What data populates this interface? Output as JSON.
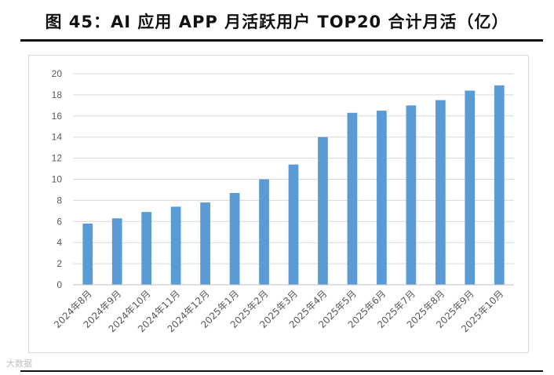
{
  "figure": {
    "title": "图 45：AI 应用 APP 月活跃用户 TOP20 合计月活（亿）",
    "watermark": "大数据"
  },
  "chart_data": {
    "type": "bar",
    "title": "",
    "xlabel": "",
    "ylabel": "",
    "categories": [
      "2024年8月",
      "2024年9月",
      "2024年10月",
      "2024年11月",
      "2024年12月",
      "2025年1月",
      "2025年2月",
      "2025年3月",
      "2025年4月",
      "2025年5月",
      "2025年6月",
      "2025年7月",
      "2025年8月",
      "2025年9月",
      "2025年10月"
    ],
    "values": [
      5.8,
      6.3,
      6.9,
      7.4,
      7.8,
      8.7,
      10.0,
      11.4,
      14.0,
      16.3,
      16.5,
      17.0,
      17.5,
      18.4,
      18.9
    ],
    "ylim": [
      0,
      20
    ],
    "yticks": [
      0,
      2,
      4,
      6,
      8,
      10,
      12,
      14,
      16,
      18,
      20
    ],
    "grid": true,
    "legend": "none",
    "colors": {
      "bar": "#5b9bd5",
      "grid": "#d9d9d9",
      "axis_text": "#595959"
    }
  }
}
